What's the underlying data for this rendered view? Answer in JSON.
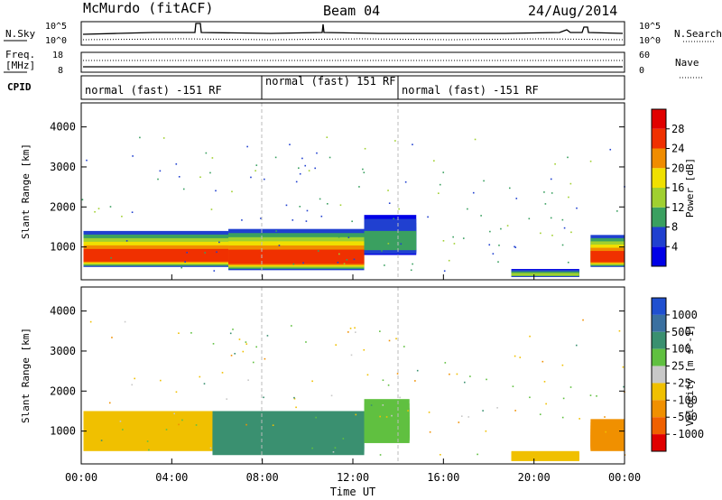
{
  "header": {
    "station": "McMurdo (fitACF)",
    "beam": "Beam 04",
    "date": "24/Aug/2014"
  },
  "sky_panel": {
    "left_label": "N.Sky",
    "right_label": "N.Search",
    "left_ticks": [
      "10^5",
      "10^0"
    ],
    "right_ticks": [
      "10^5",
      "10^0"
    ]
  },
  "freq_panel": {
    "left_label_1": "Freq.",
    "left_label_2": "[MHz]",
    "left_ticks": [
      "18",
      "8"
    ],
    "right_label": "Nave",
    "right_ticks": [
      "60",
      "0"
    ],
    "cpid_label": "CPID"
  },
  "cpid_segments": [
    {
      "label": "normal (fast) -151 RF",
      "start_hour": 0,
      "end_hour": 8
    },
    {
      "label": "normal (fast) 151 RF",
      "start_hour": 8,
      "end_hour": 14
    },
    {
      "label": "normal (fast) -151 RF",
      "start_hour": 14,
      "end_hour": 24
    }
  ],
  "chart_data": [
    {
      "type": "heatmap",
      "quantity": "Power",
      "ylabel": "Slant Range [km]",
      "xlim": [
        0,
        24
      ],
      "ylim": [
        180,
        4600
      ],
      "yticks": [
        1000,
        2000,
        3000,
        4000
      ],
      "colorbar": {
        "label": "Power [dB]",
        "range": [
          0,
          32
        ],
        "ticks": [
          "28",
          "24",
          "20",
          "16",
          "12",
          "8",
          "4"
        ],
        "colors": [
          "#0000e6",
          "#2040d0",
          "#3aa060",
          "#a0d030",
          "#f0e000",
          "#f08c00",
          "#f03000",
          "#e00000"
        ]
      },
      "bands": [
        {
          "start_hour": 0.1,
          "end_hour": 6.5,
          "low_km": 500,
          "high_km": 1400,
          "value": 24
        },
        {
          "start_hour": 6.5,
          "end_hour": 12.5,
          "low_km": 420,
          "high_km": 1450,
          "value": 26
        },
        {
          "start_hour": 12.5,
          "end_hour": 14.8,
          "low_km": 800,
          "high_km": 1800,
          "value": 10
        },
        {
          "start_hour": 19.0,
          "end_hour": 22.0,
          "low_km": 250,
          "high_km": 450,
          "value": 14
        },
        {
          "start_hour": 22.5,
          "end_hour": 24.0,
          "low_km": 500,
          "high_km": 1300,
          "value": 26
        }
      ]
    },
    {
      "type": "heatmap",
      "quantity": "Velocity",
      "ylabel": "Slant Range [km]",
      "xlabel": "Time UT",
      "xlim": [
        0,
        24
      ],
      "ylim": [
        180,
        4600
      ],
      "yticks": [
        1000,
        2000,
        3000,
        4000
      ],
      "xticks": [
        "00:00",
        "04:00",
        "08:00",
        "12:00",
        "16:00",
        "20:00",
        "00:00"
      ],
      "colorbar": {
        "label": "Velocity [m s^-1]",
        "ticks": [
          "1000",
          "500",
          "100",
          "25",
          "-25",
          "-100",
          "-500",
          "-1000"
        ],
        "colors": [
          "#2050d0",
          "#3a70a0",
          "#3a9070",
          "#60c040",
          "#c8c8c8",
          "#f0c000",
          "#f09000",
          "#f06000",
          "#e00000"
        ]
      },
      "bands": [
        {
          "start_hour": 0.1,
          "end_hour": 5.8,
          "low_km": 500,
          "high_km": 1500,
          "value": -100
        },
        {
          "start_hour": 5.8,
          "end_hour": 12.5,
          "low_km": 400,
          "high_km": 1500,
          "value": 200
        },
        {
          "start_hour": 12.5,
          "end_hour": 14.5,
          "low_km": 700,
          "high_km": 1800,
          "value": 60
        },
        {
          "start_hour": 19.0,
          "end_hour": 22.0,
          "low_km": 250,
          "high_km": 500,
          "value": -100
        },
        {
          "start_hour": 22.5,
          "end_hour": 24.0,
          "low_km": 500,
          "high_km": 1300,
          "value": -300
        }
      ]
    }
  ]
}
